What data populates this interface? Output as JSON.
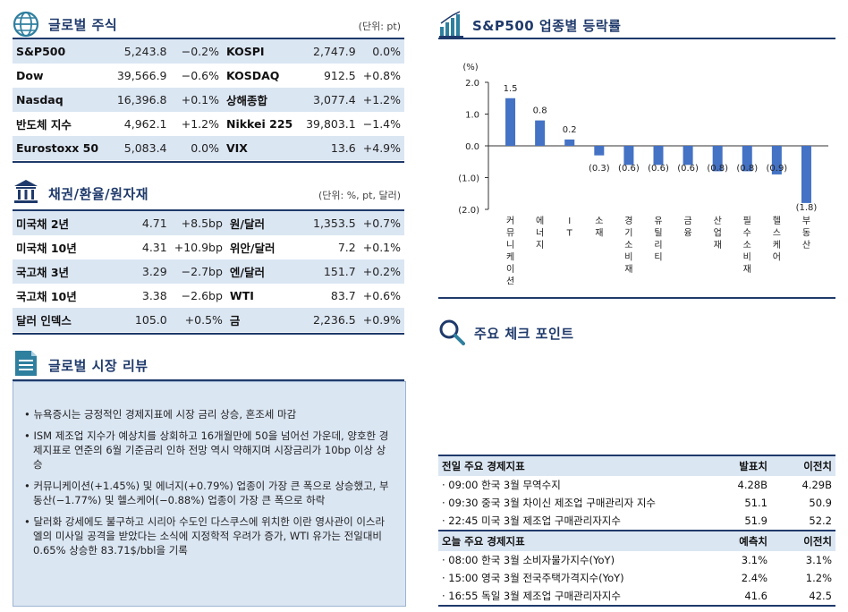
{
  "global_stocks": {
    "title": "글로벌 주식",
    "unit": "(단위: pt)",
    "rows": [
      {
        "l_name": "S&P500",
        "l_val": "5,243.8",
        "l_chg": "−0.2%",
        "r_name": "KOSPI",
        "r_val": "2,747.9",
        "r_chg": "0.0%"
      },
      {
        "l_name": "Dow",
        "l_val": "39,566.9",
        "l_chg": "−0.6%",
        "r_name": "KOSDAQ",
        "r_val": "912.5",
        "r_chg": "+0.8%"
      },
      {
        "l_name": "Nasdaq",
        "l_val": "16,396.8",
        "l_chg": "+0.1%",
        "r_name": "상해종합",
        "r_val": "3,077.4",
        "r_chg": "+1.2%"
      },
      {
        "l_name": "반도체 지수",
        "l_val": "4,962.1",
        "l_chg": "+1.2%",
        "r_name": "Nikkei 225",
        "r_val": "39,803.1",
        "r_chg": "−1.4%"
      },
      {
        "l_name": "Eurostoxx 50",
        "l_val": "5,083.4",
        "l_chg": "0.0%",
        "r_name": "VIX",
        "r_val": "13.6",
        "r_chg": "+4.9%"
      }
    ]
  },
  "bonds": {
    "title": "채권/환율/원자재",
    "unit": "(단위: %, pt, 달러)",
    "rows": [
      {
        "l_name": "미국채 2년",
        "l_val": "4.71",
        "l_chg": "+8.5bp",
        "r_name": "원/달러",
        "r_val": "1,353.5",
        "r_chg": "+0.7%"
      },
      {
        "l_name": "미국채 10년",
        "l_val": "4.31",
        "l_chg": "+10.9bp",
        "r_name": "위안/달러",
        "r_val": "7.2",
        "r_chg": "+0.1%"
      },
      {
        "l_name": "국고채 3년",
        "l_val": "3.29",
        "l_chg": "−2.7bp",
        "r_name": "엔/달러",
        "r_val": "151.7",
        "r_chg": "+0.2%"
      },
      {
        "l_name": "국고채 10년",
        "l_val": "3.38",
        "l_chg": "−2.6bp",
        "r_name": "WTI",
        "r_val": "83.7",
        "r_chg": "+0.6%"
      },
      {
        "l_name": "달러 인덱스",
        "l_val": "105.0",
        "l_chg": "+0.5%",
        "r_name": "금",
        "r_val": "2,236.5",
        "r_chg": "+0.9%"
      }
    ]
  },
  "review": {
    "title": "글로벌 시장 리뷰",
    "items": [
      "• 뉴욕증시는 긍정적인 경제지표에 시장 금리 상승, 혼조세 마감",
      "• ISM 제조업 지수가 예상치를 상회하고 16개월만에 50을 넘어선 가운데, 양호한 경제지표로 연준의 6월 기준금리 인하 전망 역시 약해지며 시장금리가 10bp 이상 상승",
      "• 커뮤니케이션(+1.45%) 및 에너지(+0.79%) 업종이 가장 큰 폭으로 상승했고, 부동산(−1.77%) 및 헬스케어(−0.88%) 업종이 가장 큰 폭으로 하락",
      "• 달러화 강세에도 불구하고 시리아 수도인 다스쿠스에 위치한 이란 영사관이 이스라엘의 미사일 공격을 받았다는 소식에 지정학적 우려가 증가, WTI 유가는 전일대비 0.65% 상승한 83.71$/bbl을 기록"
    ]
  },
  "sector_chart": {
    "title": "S&P500 업종별 등락률"
  },
  "chart_data": {
    "type": "bar",
    "ylabel": "(%)",
    "ylim": [
      -2.0,
      2.0
    ],
    "yticks": [
      "2.0",
      "1.0",
      "0.0",
      "(1.0)",
      "(2.0)"
    ],
    "yticks_values": [
      2.0,
      1.0,
      0.0,
      -1.0,
      -2.0
    ],
    "categories": [
      "커뮤니케이션",
      "에너지",
      "IT",
      "소재",
      "경기소비재",
      "유틸리티",
      "금융",
      "산업재",
      "필수소비재",
      "헬스케어",
      "부동산"
    ],
    "values": [
      1.5,
      0.8,
      0.2,
      -0.3,
      -0.6,
      -0.6,
      -0.6,
      -0.8,
      -0.8,
      -0.9,
      -1.8
    ],
    "labels": [
      "1.5",
      "0.8",
      "0.2",
      "(0.3)",
      "(0.6)",
      "(0.6)",
      "(0.6)",
      "(0.8)",
      "(0.8)",
      "(0.9)",
      "(1.8)"
    ],
    "color": "#4472c4"
  },
  "checkpoint": {
    "title": "주요 체크 포인트"
  },
  "indicators": {
    "prev_header": {
      "title": "전일 주요 경제지표",
      "col1": "발표치",
      "col2": "이전치"
    },
    "prev_rows": [
      {
        "name": "· 09:00 한국 3월 무역수지",
        "v1": "4.28B",
        "v2": "4.29B"
      },
      {
        "name": "· 09:30 중국 3월 차이신 제조업 구매관리자 지수",
        "v1": "51.1",
        "v2": "50.9"
      },
      {
        "name": "· 22:45 미국 3월 제조업 구매관리자지수",
        "v1": "51.9",
        "v2": "52.2"
      }
    ],
    "today_header": {
      "title": "오늘 주요 경제지표",
      "col1": "예측치",
      "col2": "이전치"
    },
    "today_rows": [
      {
        "name": "· 08:00 한국 3월 소비자물가지수(YoY)",
        "v1": "3.1%",
        "v2": "3.1%"
      },
      {
        "name": "· 15:00 영국 3월 전국주택가격지수(YoY)",
        "v1": "2.4%",
        "v2": "1.2%"
      },
      {
        "name": "· 16:55 독일 3월 제조업 구매관리자지수",
        "v1": "41.6",
        "v2": "42.5"
      }
    ]
  },
  "colors": {
    "navy": "#1f3a6b",
    "band": "#dbe6f3",
    "bar": "#4472c4",
    "icon_teal": "#2f7f9f"
  }
}
